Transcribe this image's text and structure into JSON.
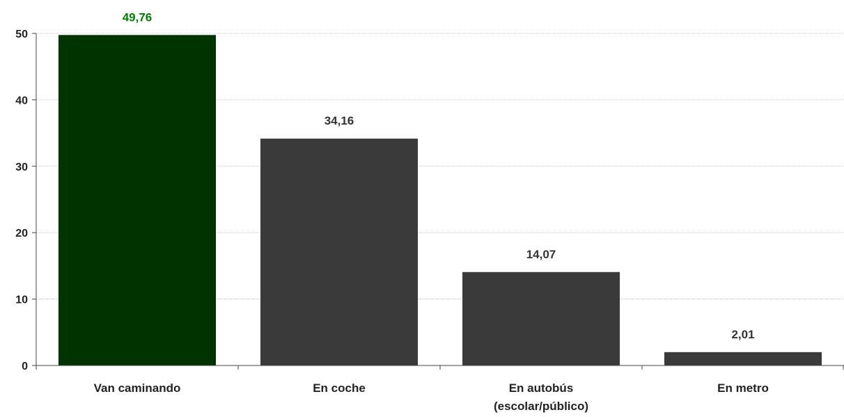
{
  "chart_data": {
    "type": "bar",
    "categories": [
      [
        "Van caminando"
      ],
      [
        "En coche"
      ],
      [
        "En autobús",
        "(escolar/público)"
      ],
      [
        "En metro"
      ]
    ],
    "values": [
      49.76,
      34.16,
      14.07,
      2.01
    ],
    "value_labels": [
      "49,76",
      "34,16",
      "14,07",
      "2,01"
    ],
    "ylim": [
      0,
      50
    ],
    "yticks": [
      0,
      10,
      20,
      30,
      40,
      50
    ],
    "grid": true,
    "bar_colors": [
      "#003300",
      "#3a3a3a",
      "#3a3a3a",
      "#3a3a3a"
    ],
    "label_colors": [
      "#008000",
      "#333333",
      "#333333",
      "#333333"
    ],
    "title": "",
    "xlabel": "",
    "ylabel": ""
  }
}
